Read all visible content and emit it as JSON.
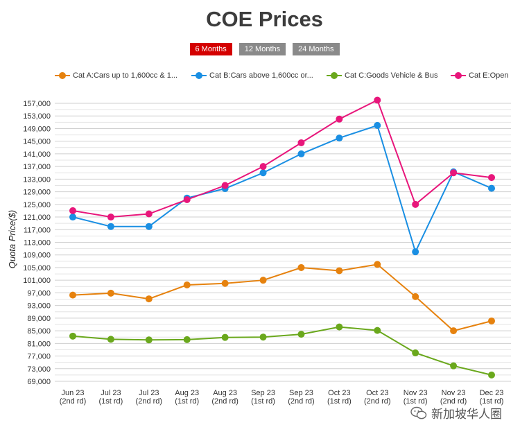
{
  "title": "COE Prices",
  "tabs": [
    {
      "label": "6 Months",
      "active": true
    },
    {
      "label": "12 Months",
      "active": false
    },
    {
      "label": "24 Months",
      "active": false
    }
  ],
  "watermark": "新加坡华人圈",
  "chart_data": {
    "type": "line",
    "ylabel": "Quota Price($)",
    "ylim": [
      69000,
      157000
    ],
    "yticks": [
      69000,
      73000,
      77000,
      81000,
      85000,
      89000,
      93000,
      97000,
      101000,
      105000,
      109000,
      113000,
      117000,
      121000,
      125000,
      129000,
      133000,
      137000,
      141000,
      145000,
      149000,
      153000,
      157000
    ],
    "grid": true,
    "legend_position": "top",
    "categories": [
      [
        "Jun 23",
        "(2nd rd)"
      ],
      [
        "Jul 23",
        "(1st rd)"
      ],
      [
        "Jul 23",
        "(2nd rd)"
      ],
      [
        "Aug 23",
        "(1st rd)"
      ],
      [
        "Aug 23",
        "(2nd rd)"
      ],
      [
        "Sep 23",
        "(1st rd)"
      ],
      [
        "Sep 23",
        "(2nd rd)"
      ],
      [
        "Oct 23",
        "(1st rd)"
      ],
      [
        "Oct 23",
        "(2nd rd)"
      ],
      [
        "Nov 23",
        "(1st rd)"
      ],
      [
        "Nov 23",
        "(2nd rd)"
      ],
      [
        "Dec 23",
        "(1st rd)"
      ]
    ],
    "series": [
      {
        "name": "Cat A:Cars up to 1,600cc & 1...",
        "color": "#e6820e",
        "values": [
          96300,
          96900,
          95100,
          99500,
          100000,
          101000,
          105000,
          104000,
          106000,
          95800,
          85000,
          88100
        ]
      },
      {
        "name": "Cat B:Cars above 1,600cc or...",
        "color": "#1a8fe3",
        "values": [
          121000,
          118000,
          118000,
          127000,
          130000,
          135000,
          141000,
          146000,
          150000,
          110000,
          135300,
          130100
        ]
      },
      {
        "name": "Cat C:Goods Vehicle & Bus",
        "color": "#6aa81c",
        "values": [
          83300,
          82300,
          82100,
          82200,
          82900,
          83000,
          83900,
          86200,
          85100,
          78000,
          73900,
          71000
        ]
      },
      {
        "name": "Cat E:Open",
        "color": "#e8167b",
        "values": [
          123000,
          121000,
          122000,
          126500,
          131000,
          137000,
          144500,
          152000,
          158000,
          125000,
          135000,
          133500
        ]
      }
    ]
  }
}
